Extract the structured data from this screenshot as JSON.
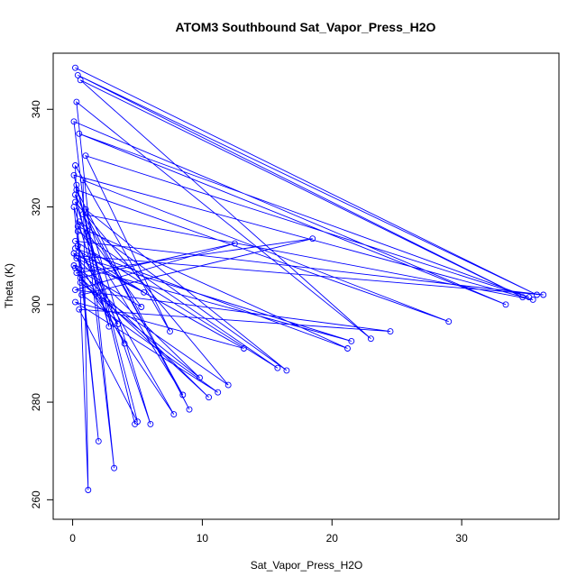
{
  "chart_data": {
    "type": "line",
    "title": "ATOM3 Southbound Sat_Vapor_Press_H2O",
    "xlabel": "Sat_Vapor_Press_H2O",
    "ylabel": "Theta (K)",
    "xlim": [
      -1.5,
      37.5
    ],
    "ylim": [
      256.0,
      351.5
    ],
    "xticks": [
      0,
      10,
      20,
      30
    ],
    "yticks": [
      260,
      280,
      300,
      320,
      340
    ],
    "grid": false,
    "color": "#0000ff",
    "marker": "open-circle",
    "series": [
      {
        "x": [
          0.2,
          35.8,
          0.4,
          34.7,
          0.6,
          23.0,
          0.3,
          3.2,
          0.1,
          33.4,
          0.5,
          35.2,
          1.0,
          7.5,
          0.2,
          1.2,
          0.8,
          29.0,
          0.3,
          9.0,
          0.2,
          2.8,
          0.1,
          2.0,
          0.4,
          15.8,
          0.2,
          36.3,
          0.3,
          21.5,
          0.1,
          10.5,
          0.6,
          12.5,
          0.2,
          24.5,
          0.5,
          5.0,
          0.3,
          4.8,
          0.1,
          35.5,
          0.8,
          8.5,
          0.4,
          21.2,
          0.2,
          5.5,
          0.3,
          9.8,
          0.6,
          12.0,
          0.2,
          6.0,
          1.0,
          16.5,
          0.5,
          5.3,
          0.2,
          7.8,
          0.4,
          3.5,
          0.3,
          18.5,
          0.7,
          11.2,
          0.2,
          13.2,
          0.1,
          4.0
        ],
        "y": [
          348.5,
          302.0,
          347.0,
          301.5,
          346.0,
          293.0,
          341.5,
          266.5,
          337.5,
          300.0,
          335.0,
          301.5,
          330.5,
          294.5,
          328.5,
          262.0,
          325.5,
          296.5,
          323.5,
          278.5,
          322.5,
          295.5,
          320.0,
          272.0,
          315.0,
          287.0,
          313.0,
          302.0,
          310.0,
          292.5,
          308.0,
          281.0,
          305.5,
          312.5,
          303.0,
          294.5,
          299.0,
          276.0,
          324.5,
          275.5,
          326.5,
          301.0,
          318.5,
          281.5,
          316.0,
          291.0,
          311.5,
          302.5,
          309.5,
          285.0,
          304.5,
          283.5,
          321.0,
          275.5,
          319.5,
          286.5,
          317.0,
          299.5,
          307.5,
          277.5,
          312.0,
          296.0,
          306.5,
          313.5,
          302.0,
          282.0,
          300.5,
          291.0,
          310.5,
          292.0
        ]
      }
    ]
  }
}
